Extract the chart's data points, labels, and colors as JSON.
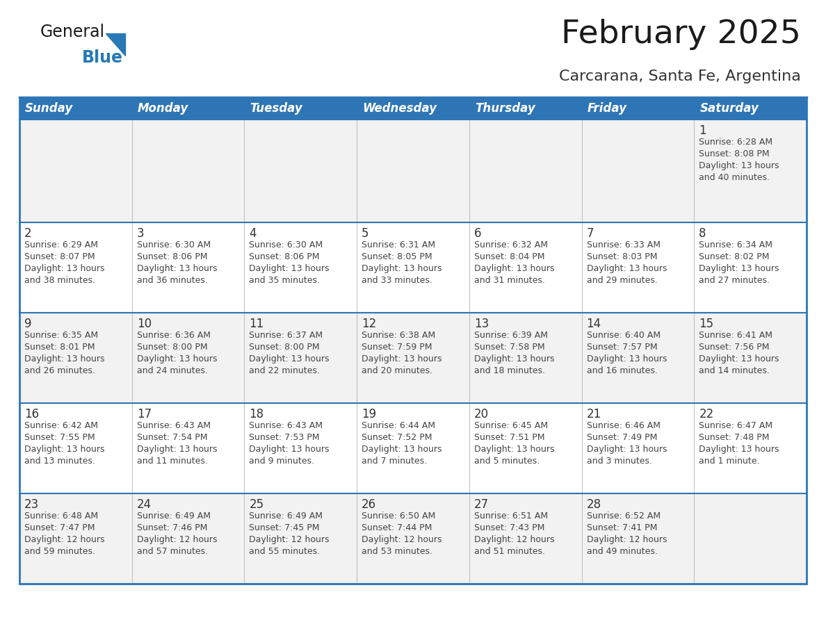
{
  "title": "February 2025",
  "subtitle": "Carcarana, Santa Fe, Argentina",
  "days_of_week": [
    "Sunday",
    "Monday",
    "Tuesday",
    "Wednesday",
    "Thursday",
    "Friday",
    "Saturday"
  ],
  "header_bg": "#2E75B6",
  "header_text": "#FFFFFF",
  "row_bg_odd": "#F2F2F2",
  "row_bg_even": "#FFFFFF",
  "day_number_color": "#333333",
  "text_color": "#444444",
  "border_color": "#2E75B6",
  "divider_color": "#2E75B6",
  "title_color": "#1a1a1a",
  "subtitle_color": "#333333",
  "logo_general_color": "#1a1a1a",
  "logo_blue_color": "#2778b5",
  "calendar_data": [
    [
      null,
      null,
      null,
      null,
      null,
      null,
      {
        "day": 1,
        "sunrise": "6:28 AM",
        "sunset": "8:08 PM",
        "daylight_line1": "Daylight: 13 hours",
        "daylight_line2": "and 40 minutes."
      }
    ],
    [
      {
        "day": 2,
        "sunrise": "6:29 AM",
        "sunset": "8:07 PM",
        "daylight_line1": "Daylight: 13 hours",
        "daylight_line2": "and 38 minutes."
      },
      {
        "day": 3,
        "sunrise": "6:30 AM",
        "sunset": "8:06 PM",
        "daylight_line1": "Daylight: 13 hours",
        "daylight_line2": "and 36 minutes."
      },
      {
        "day": 4,
        "sunrise": "6:30 AM",
        "sunset": "8:06 PM",
        "daylight_line1": "Daylight: 13 hours",
        "daylight_line2": "and 35 minutes."
      },
      {
        "day": 5,
        "sunrise": "6:31 AM",
        "sunset": "8:05 PM",
        "daylight_line1": "Daylight: 13 hours",
        "daylight_line2": "and 33 minutes."
      },
      {
        "day": 6,
        "sunrise": "6:32 AM",
        "sunset": "8:04 PM",
        "daylight_line1": "Daylight: 13 hours",
        "daylight_line2": "and 31 minutes."
      },
      {
        "day": 7,
        "sunrise": "6:33 AM",
        "sunset": "8:03 PM",
        "daylight_line1": "Daylight: 13 hours",
        "daylight_line2": "and 29 minutes."
      },
      {
        "day": 8,
        "sunrise": "6:34 AM",
        "sunset": "8:02 PM",
        "daylight_line1": "Daylight: 13 hours",
        "daylight_line2": "and 27 minutes."
      }
    ],
    [
      {
        "day": 9,
        "sunrise": "6:35 AM",
        "sunset": "8:01 PM",
        "daylight_line1": "Daylight: 13 hours",
        "daylight_line2": "and 26 minutes."
      },
      {
        "day": 10,
        "sunrise": "6:36 AM",
        "sunset": "8:00 PM",
        "daylight_line1": "Daylight: 13 hours",
        "daylight_line2": "and 24 minutes."
      },
      {
        "day": 11,
        "sunrise": "6:37 AM",
        "sunset": "8:00 PM",
        "daylight_line1": "Daylight: 13 hours",
        "daylight_line2": "and 22 minutes."
      },
      {
        "day": 12,
        "sunrise": "6:38 AM",
        "sunset": "7:59 PM",
        "daylight_line1": "Daylight: 13 hours",
        "daylight_line2": "and 20 minutes."
      },
      {
        "day": 13,
        "sunrise": "6:39 AM",
        "sunset": "7:58 PM",
        "daylight_line1": "Daylight: 13 hours",
        "daylight_line2": "and 18 minutes."
      },
      {
        "day": 14,
        "sunrise": "6:40 AM",
        "sunset": "7:57 PM",
        "daylight_line1": "Daylight: 13 hours",
        "daylight_line2": "and 16 minutes."
      },
      {
        "day": 15,
        "sunrise": "6:41 AM",
        "sunset": "7:56 PM",
        "daylight_line1": "Daylight: 13 hours",
        "daylight_line2": "and 14 minutes."
      }
    ],
    [
      {
        "day": 16,
        "sunrise": "6:42 AM",
        "sunset": "7:55 PM",
        "daylight_line1": "Daylight: 13 hours",
        "daylight_line2": "and 13 minutes."
      },
      {
        "day": 17,
        "sunrise": "6:43 AM",
        "sunset": "7:54 PM",
        "daylight_line1": "Daylight: 13 hours",
        "daylight_line2": "and 11 minutes."
      },
      {
        "day": 18,
        "sunrise": "6:43 AM",
        "sunset": "7:53 PM",
        "daylight_line1": "Daylight: 13 hours",
        "daylight_line2": "and 9 minutes."
      },
      {
        "day": 19,
        "sunrise": "6:44 AM",
        "sunset": "7:52 PM",
        "daylight_line1": "Daylight: 13 hours",
        "daylight_line2": "and 7 minutes."
      },
      {
        "day": 20,
        "sunrise": "6:45 AM",
        "sunset": "7:51 PM",
        "daylight_line1": "Daylight: 13 hours",
        "daylight_line2": "and 5 minutes."
      },
      {
        "day": 21,
        "sunrise": "6:46 AM",
        "sunset": "7:49 PM",
        "daylight_line1": "Daylight: 13 hours",
        "daylight_line2": "and 3 minutes."
      },
      {
        "day": 22,
        "sunrise": "6:47 AM",
        "sunset": "7:48 PM",
        "daylight_line1": "Daylight: 13 hours",
        "daylight_line2": "and 1 minute."
      }
    ],
    [
      {
        "day": 23,
        "sunrise": "6:48 AM",
        "sunset": "7:47 PM",
        "daylight_line1": "Daylight: 12 hours",
        "daylight_line2": "and 59 minutes."
      },
      {
        "day": 24,
        "sunrise": "6:49 AM",
        "sunset": "7:46 PM",
        "daylight_line1": "Daylight: 12 hours",
        "daylight_line2": "and 57 minutes."
      },
      {
        "day": 25,
        "sunrise": "6:49 AM",
        "sunset": "7:45 PM",
        "daylight_line1": "Daylight: 12 hours",
        "daylight_line2": "and 55 minutes."
      },
      {
        "day": 26,
        "sunrise": "6:50 AM",
        "sunset": "7:44 PM",
        "daylight_line1": "Daylight: 12 hours",
        "daylight_line2": "and 53 minutes."
      },
      {
        "day": 27,
        "sunrise": "6:51 AM",
        "sunset": "7:43 PM",
        "daylight_line1": "Daylight: 12 hours",
        "daylight_line2": "and 51 minutes."
      },
      {
        "day": 28,
        "sunrise": "6:52 AM",
        "sunset": "7:41 PM",
        "daylight_line1": "Daylight: 12 hours",
        "daylight_line2": "and 49 minutes."
      },
      null
    ]
  ]
}
